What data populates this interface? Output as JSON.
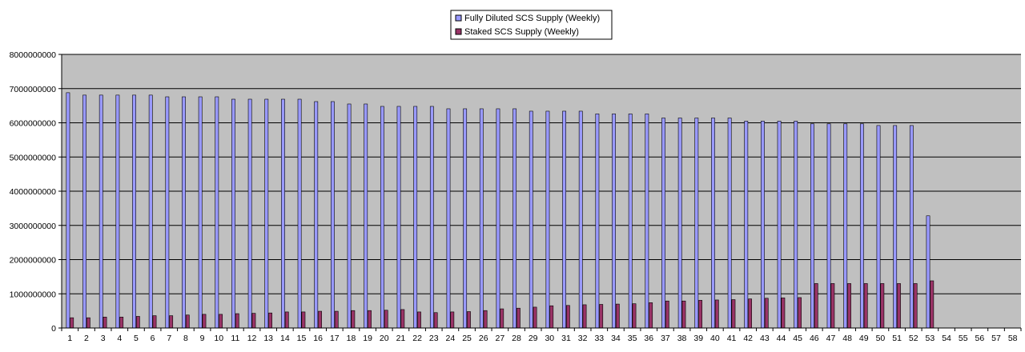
{
  "chart_data": {
    "type": "bar",
    "title": "",
    "xlabel": "",
    "ylabel": "",
    "categories": [
      "1",
      "2",
      "3",
      "4",
      "5",
      "6",
      "7",
      "8",
      "9",
      "10",
      "11",
      "12",
      "13",
      "14",
      "15",
      "16",
      "17",
      "18",
      "19",
      "20",
      "21",
      "22",
      "23",
      "24",
      "25",
      "26",
      "27",
      "28",
      "29",
      "30",
      "31",
      "32",
      "33",
      "34",
      "35",
      "36",
      "37",
      "38",
      "39",
      "40",
      "41",
      "42",
      "43",
      "44",
      "45",
      "46",
      "47",
      "48",
      "49",
      "50",
      "51",
      "52",
      "53",
      "54",
      "55",
      "56",
      "57",
      "58"
    ],
    "ylim": [
      0,
      8000000000
    ],
    "yticks": [
      "0",
      "1000000000",
      "2000000000",
      "3000000000",
      "4000000000",
      "5000000000",
      "6000000000",
      "7000000000",
      "8000000000"
    ],
    "grid": true,
    "legend_position": "top-center",
    "plot_background": "#c0c0c0",
    "series": [
      {
        "name": "Fully Diluted SCS Supply (Weekly)",
        "color": "#9999ff",
        "values": [
          6880000000,
          6810000000,
          6810000000,
          6810000000,
          6810000000,
          6810000000,
          6760000000,
          6760000000,
          6760000000,
          6760000000,
          6690000000,
          6690000000,
          6690000000,
          6690000000,
          6690000000,
          6620000000,
          6620000000,
          6550000000,
          6550000000,
          6480000000,
          6480000000,
          6480000000,
          6480000000,
          6410000000,
          6410000000,
          6410000000,
          6410000000,
          6410000000,
          6340000000,
          6340000000,
          6340000000,
          6340000000,
          6260000000,
          6260000000,
          6260000000,
          6260000000,
          6140000000,
          6140000000,
          6140000000,
          6140000000,
          6140000000,
          6050000000,
          6050000000,
          6050000000,
          6050000000,
          5970000000,
          5970000000,
          5970000000,
          5970000000,
          5920000000,
          5920000000,
          5920000000,
          3280000000,
          null,
          null,
          null,
          null,
          null
        ]
      },
      {
        "name": "Staked SCS Supply (Weekly)",
        "color": "#993366",
        "values": [
          300000000,
          300000000,
          320000000,
          320000000,
          340000000,
          360000000,
          360000000,
          380000000,
          400000000,
          400000000,
          420000000,
          430000000,
          440000000,
          470000000,
          470000000,
          490000000,
          490000000,
          510000000,
          510000000,
          520000000,
          540000000,
          470000000,
          450000000,
          470000000,
          480000000,
          510000000,
          560000000,
          580000000,
          610000000,
          650000000,
          660000000,
          680000000,
          690000000,
          700000000,
          710000000,
          740000000,
          790000000,
          790000000,
          810000000,
          820000000,
          830000000,
          850000000,
          870000000,
          880000000,
          890000000,
          1300000000,
          1300000000,
          1300000000,
          1300000000,
          1300000000,
          1300000000,
          1300000000,
          1380000000,
          null,
          null,
          null,
          null,
          null
        ]
      }
    ]
  }
}
